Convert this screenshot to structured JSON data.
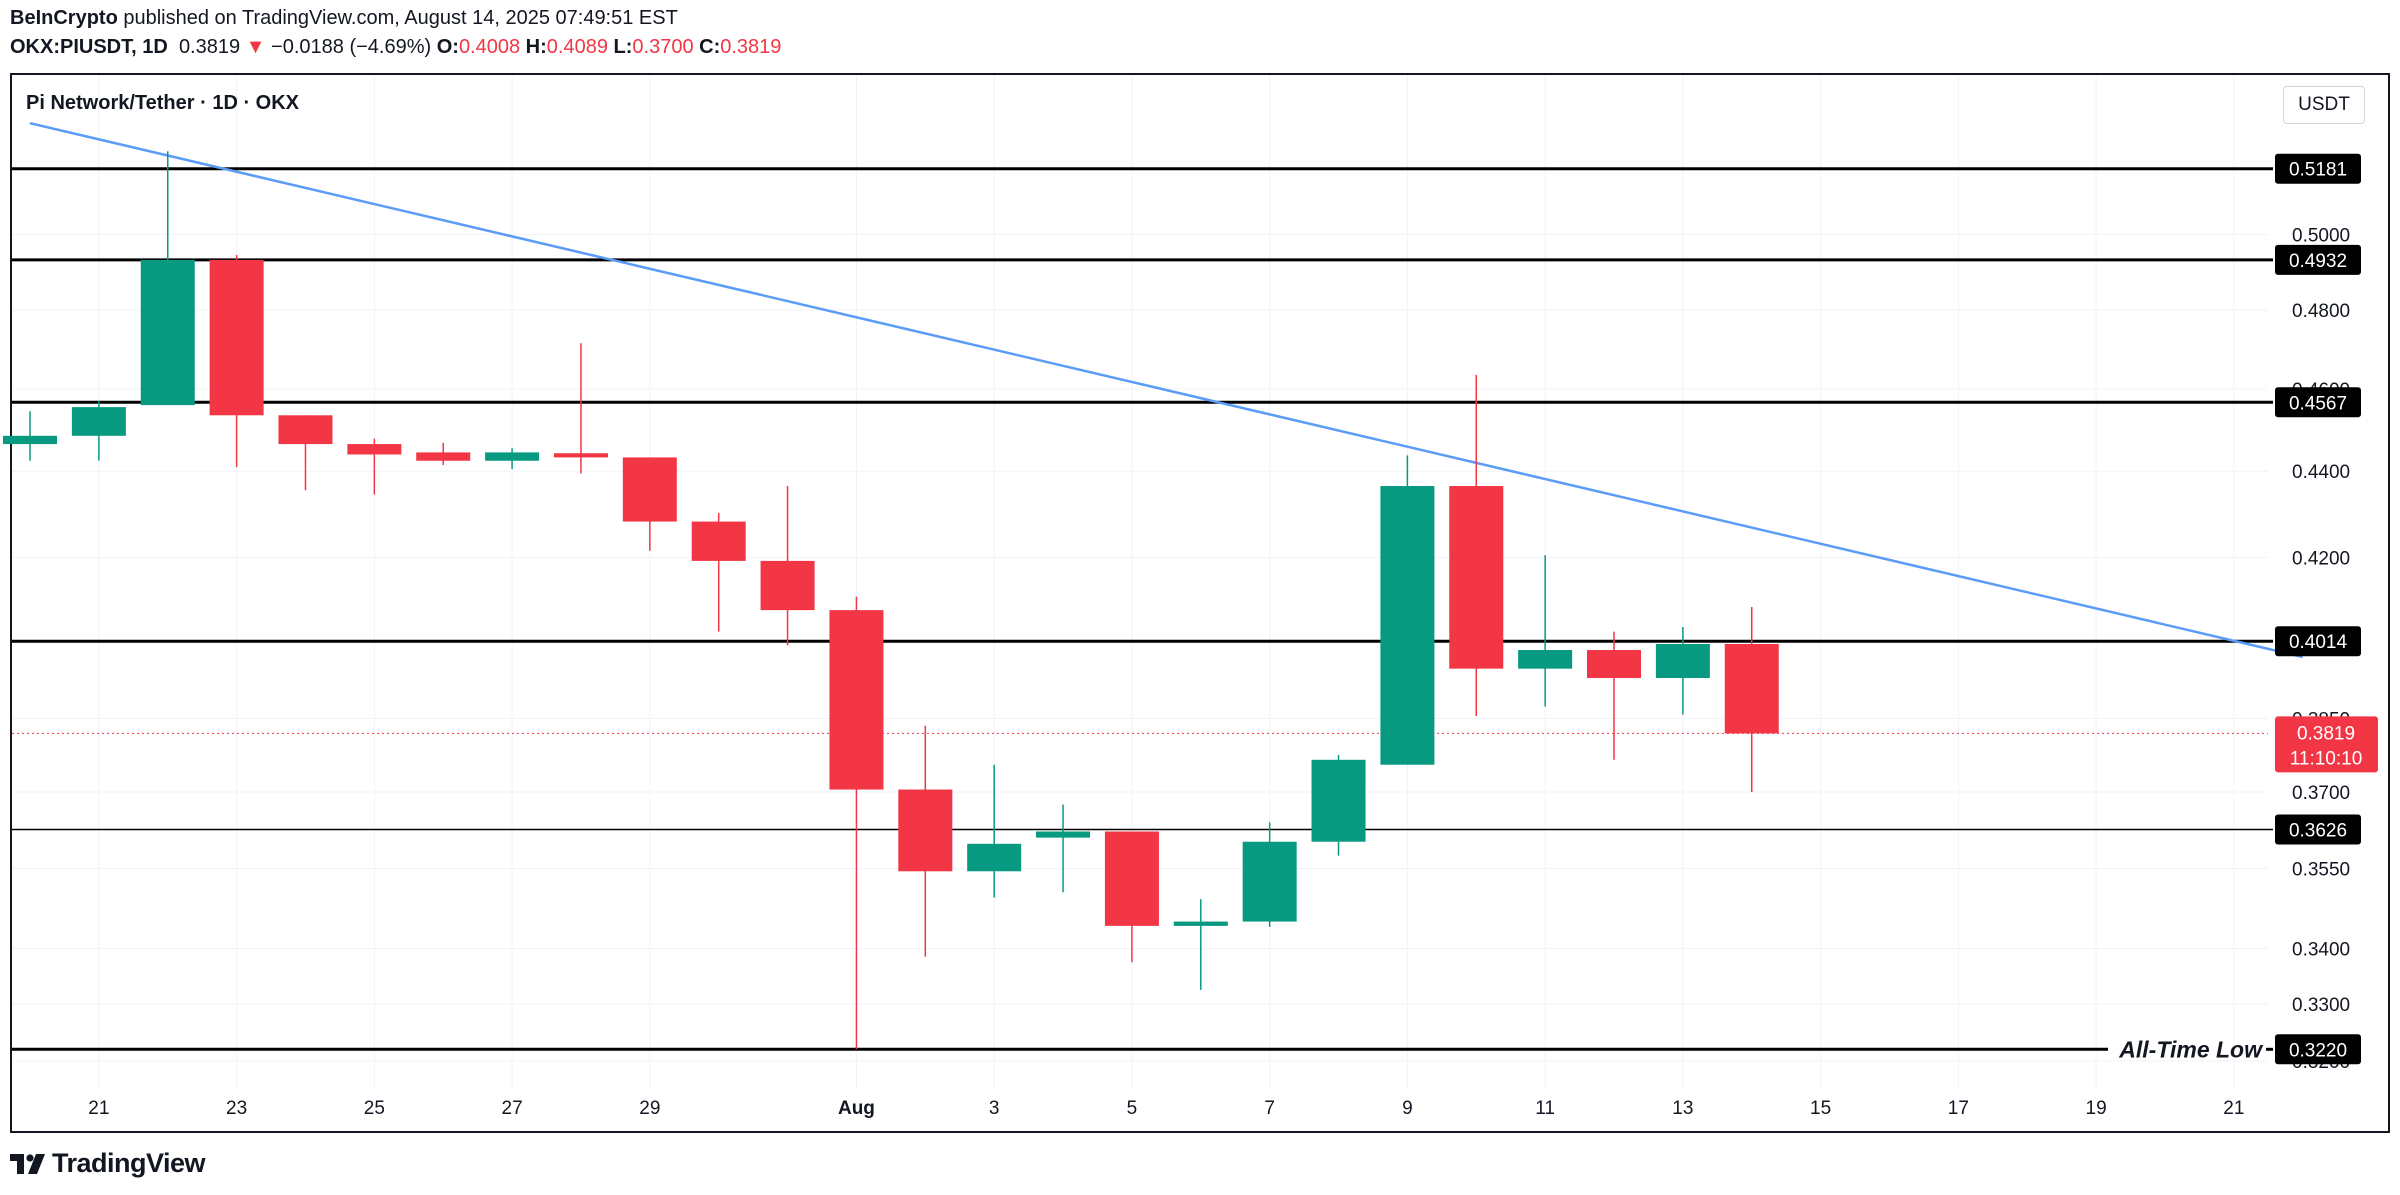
{
  "header": {
    "publisher": "BeInCrypto",
    "published_text": " published on TradingView.com, August 14, 2025 07:49:51 EST",
    "symbol": "OKX:PIUSDT, 1D",
    "last": "0.3819",
    "arrow": "▼",
    "change": "−0.0188 (−4.69%)",
    "o_label": "O:",
    "o_value": "0.4008",
    "h_label": "H:",
    "h_value": "0.4089",
    "l_label": "L:",
    "l_value": "0.3700",
    "c_label": "C:",
    "c_value": "0.3819"
  },
  "legend_title": "Pi Network/Tether · 1D · OKX",
  "currency_button": "USDT",
  "footer_brand": "TradingView",
  "colors": {
    "up": "#089981",
    "down": "#f23645",
    "trendline": "#5b9cf6",
    "level": "#000000"
  },
  "chart_data": {
    "type": "candlestick",
    "title": "Pi Network/Tether · 1D · OKX",
    "x_tick_labels": [
      "21",
      "23",
      "25",
      "27",
      "29",
      "Aug",
      "3",
      "5",
      "7",
      "9",
      "11",
      "13",
      "15",
      "17",
      "19",
      "21"
    ],
    "x_tick_days": [
      "2025-07-21",
      "2025-07-23",
      "2025-07-25",
      "2025-07-27",
      "2025-07-29",
      "2025-08-01",
      "2025-08-03",
      "2025-08-05",
      "2025-08-07",
      "2025-08-09",
      "2025-08-11",
      "2025-08-13",
      "2025-08-15",
      "2025-08-17",
      "2025-08-19",
      "2025-08-21"
    ],
    "x_range": [
      "2025-07-20",
      "2025-08-23"
    ],
    "y_scale": "log",
    "y_range": [
      0.315,
      0.545
    ],
    "y_tick_labels": [
      "0.5000",
      "0.4800",
      "0.4600",
      "0.4400",
      "0.4200",
      "0.3850",
      "0.3700",
      "0.3550",
      "0.3400",
      "0.3300",
      "0.3200"
    ],
    "y_tick_values": [
      0.5,
      0.48,
      0.46,
      0.44,
      0.42,
      0.385,
      0.37,
      0.355,
      0.34,
      0.33,
      0.32
    ],
    "candles": [
      {
        "date": "2025-07-20",
        "o": 0.4465,
        "h": 0.4545,
        "l": 0.4425,
        "c": 0.4485
      },
      {
        "date": "2025-07-21",
        "o": 0.4485,
        "h": 0.457,
        "l": 0.4425,
        "c": 0.4555
      },
      {
        "date": "2025-07-22",
        "o": 0.456,
        "h": 0.523,
        "l": 0.456,
        "c": 0.4932
      },
      {
        "date": "2025-07-23",
        "o": 0.4932,
        "h": 0.4945,
        "l": 0.441,
        "c": 0.4535
      },
      {
        "date": "2025-07-24",
        "o": 0.4535,
        "h": 0.4535,
        "l": 0.4355,
        "c": 0.4465
      },
      {
        "date": "2025-07-25",
        "o": 0.4465,
        "h": 0.4478,
        "l": 0.4345,
        "c": 0.444
      },
      {
        "date": "2025-07-26",
        "o": 0.4445,
        "h": 0.4468,
        "l": 0.4415,
        "c": 0.4425
      },
      {
        "date": "2025-07-27",
        "o": 0.4425,
        "h": 0.4455,
        "l": 0.4405,
        "c": 0.4445
      },
      {
        "date": "2025-07-28",
        "o": 0.4443,
        "h": 0.4715,
        "l": 0.4395,
        "c": 0.4433
      },
      {
        "date": "2025-07-29",
        "o": 0.4433,
        "h": 0.4433,
        "l": 0.4215,
        "c": 0.4282
      },
      {
        "date": "2025-07-30",
        "o": 0.4282,
        "h": 0.4302,
        "l": 0.4035,
        "c": 0.4192
      },
      {
        "date": "2025-07-31",
        "o": 0.4192,
        "h": 0.4365,
        "l": 0.4005,
        "c": 0.4082
      },
      {
        "date": "2025-08-01",
        "o": 0.4082,
        "h": 0.4112,
        "l": 0.322,
        "c": 0.3705
      },
      {
        "date": "2025-08-02",
        "o": 0.3705,
        "h": 0.3835,
        "l": 0.3385,
        "c": 0.3545
      },
      {
        "date": "2025-08-03",
        "o": 0.3545,
        "h": 0.3755,
        "l": 0.3495,
        "c": 0.3598
      },
      {
        "date": "2025-08-04",
        "o": 0.361,
        "h": 0.3675,
        "l": 0.3505,
        "c": 0.3622
      },
      {
        "date": "2025-08-05",
        "o": 0.3622,
        "h": 0.3622,
        "l": 0.3375,
        "c": 0.3442
      },
      {
        "date": "2025-08-06",
        "o": 0.3442,
        "h": 0.3492,
        "l": 0.3325,
        "c": 0.345
      },
      {
        "date": "2025-08-07",
        "o": 0.345,
        "h": 0.364,
        "l": 0.344,
        "c": 0.3602
      },
      {
        "date": "2025-08-08",
        "o": 0.3602,
        "h": 0.3775,
        "l": 0.3575,
        "c": 0.3765
      },
      {
        "date": "2025-08-09",
        "o": 0.3755,
        "h": 0.4438,
        "l": 0.3755,
        "c": 0.4365
      },
      {
        "date": "2025-08-10",
        "o": 0.4365,
        "h": 0.4635,
        "l": 0.3855,
        "c": 0.3955
      },
      {
        "date": "2025-08-11",
        "o": 0.3955,
        "h": 0.4205,
        "l": 0.3875,
        "c": 0.3995
      },
      {
        "date": "2025-08-12",
        "o": 0.3995,
        "h": 0.4035,
        "l": 0.3765,
        "c": 0.3935
      },
      {
        "date": "2025-08-13",
        "o": 0.3935,
        "h": 0.4045,
        "l": 0.3858,
        "c": 0.4008
      },
      {
        "date": "2025-08-14",
        "o": 0.4008,
        "h": 0.4089,
        "l": 0.37,
        "c": 0.3819
      }
    ],
    "levels": [
      {
        "value": 0.5181,
        "label": "0.5181"
      },
      {
        "value": 0.4932,
        "label": "0.4932"
      },
      {
        "value": 0.4567,
        "label": "0.4567"
      },
      {
        "value": 0.4014,
        "label": "0.4014"
      },
      {
        "value": 0.3626,
        "label": "0.3626"
      },
      {
        "value": 0.322,
        "label": "0.3220",
        "annotation": "All-Time Low"
      }
    ],
    "trendline": {
      "from": {
        "date": "2025-07-20",
        "value": 0.531
      },
      "to": {
        "date": "2025-08-22",
        "value": 0.398
      }
    },
    "current_price": {
      "value": 0.3819,
      "label": "0.3819",
      "countdown": "11:10:10"
    }
  }
}
